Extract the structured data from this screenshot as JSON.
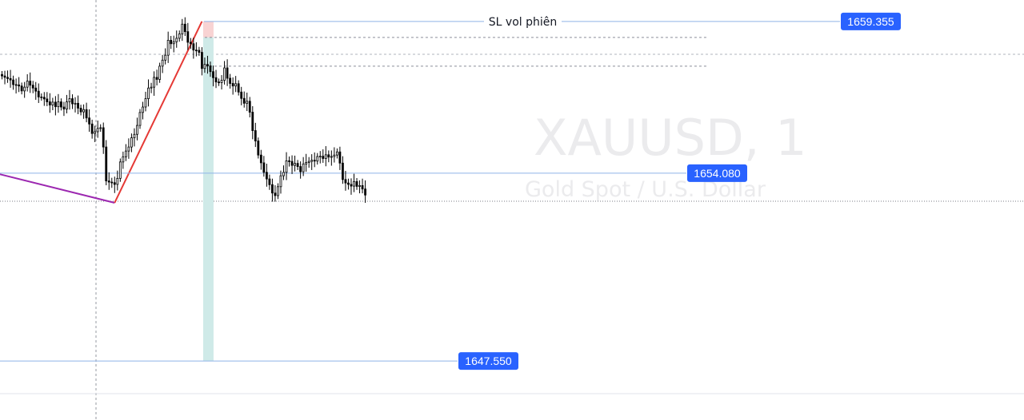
{
  "chart_data": {
    "type": "candlestick",
    "symbol": "XAUUSD, 1",
    "description": "Gold Spot / U.S. Dollar",
    "colors": {
      "candle": "#000000",
      "price_line": "#8fb3e8",
      "label_bg": "#2962ff",
      "label_text": "#ffffff",
      "zigzag_red": "#e53935",
      "zigzag_purple": "#9c27b0",
      "stop_zone": "#f8d3d3",
      "target_zone": "#cfeae8",
      "dashed": "#8a8e99",
      "watermark": "#ebebed"
    },
    "ylim": [
      1645.5,
      1660.1
    ],
    "horizontal_lines": [
      {
        "price": 1659.355,
        "label": "1659.355",
        "text": "SL vol phiên"
      },
      {
        "price": 1654.08,
        "label": "1654.080"
      },
      {
        "price": 1647.55,
        "label": "1647.550"
      }
    ],
    "dashed_levels": [
      1658.8,
      1657.8
    ],
    "position": {
      "entry": 1658.8,
      "stop": 1659.355,
      "target": 1647.55
    },
    "zigzag": [
      {
        "bar": -40,
        "price": 1655.0,
        "color": "purple"
      },
      {
        "bar": 40,
        "price": 1653.05,
        "color": "purple"
      },
      {
        "bar": 71,
        "price": 1659.355,
        "color": "red"
      }
    ],
    "candles_close": [
      1657.46,
      1657.41,
      1657.37,
      1657.32,
      1657.16,
      1657.15,
      1657.11,
      1656.94,
      1657.07,
      1657.28,
      1657.14,
      1657.04,
      1656.93,
      1656.73,
      1656.72,
      1656.66,
      1656.56,
      1656.45,
      1656.55,
      1656.39,
      1656.56,
      1656.38,
      1656.31,
      1656.56,
      1656.67,
      1656.49,
      1656.51,
      1656.34,
      1656.21,
      1656.29,
      1656.0,
      1655.79,
      1655.46,
      1655.52,
      1655.64,
      1655.66,
      1654.99,
      1653.81,
      1653.77,
      1653.75,
      1653.69,
      1653.9,
      1654.47,
      1654.65,
      1654.85,
      1654.99,
      1655.31,
      1655.43,
      1655.74,
      1656.19,
      1656.38,
      1656.67,
      1657.04,
      1657.07,
      1657.41,
      1657.34,
      1657.8,
      1658.01,
      1658.18,
      1658.7,
      1658.58,
      1658.65,
      1658.77,
      1658.92,
      1659.26,
      1659.0,
      1658.63,
      1658.58,
      1658.36,
      1658.35,
      1658.28,
      1657.72,
      1657.86,
      1657.81,
      1657.61,
      1657.4,
      1657.25,
      1657.23,
      1657.31,
      1657.74,
      1657.38,
      1657.2,
      1657.11,
      1657.19,
      1656.9,
      1656.68,
      1656.51,
      1656.58,
      1656.2,
      1655.56,
      1655.2,
      1654.71,
      1654.44,
      1654.11,
      1653.88,
      1653.68,
      1653.39,
      1653.3,
      1653.61,
      1653.99,
      1654.11,
      1654.51,
      1654.49,
      1654.35,
      1654.42,
      1654.31,
      1654.13,
      1654.4,
      1654.45,
      1654.49,
      1654.53,
      1654.5,
      1654.66,
      1654.67,
      1654.59,
      1654.72,
      1654.64,
      1654.66,
      1654.71,
      1654.82,
      1654.43,
      1653.86,
      1653.74,
      1653.69,
      1653.63,
      1653.79,
      1653.62,
      1653.65,
      1653.53,
      1653.32
    ],
    "annotations": [
      "SL vol phiên"
    ]
  }
}
